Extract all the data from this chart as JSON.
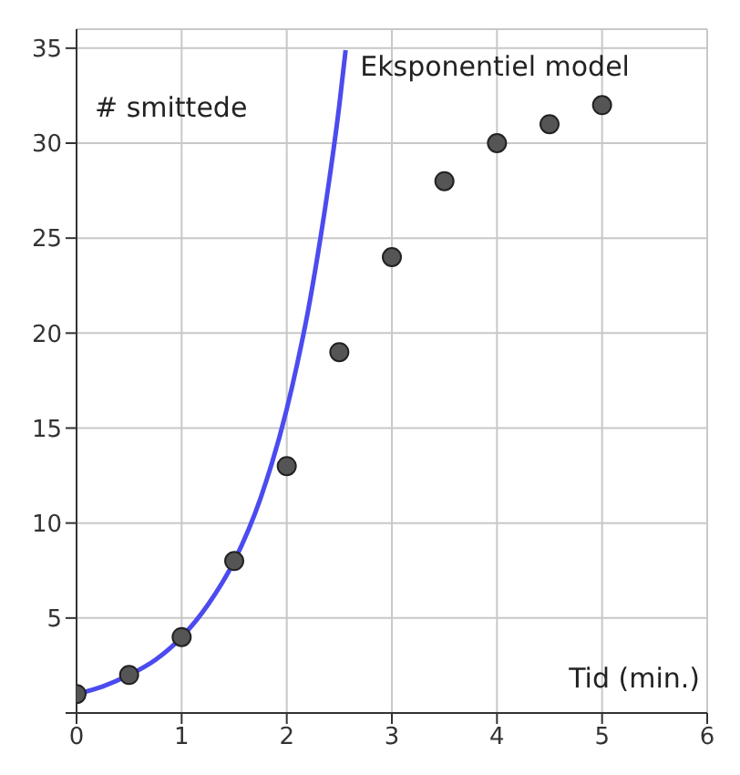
{
  "chart_data": {
    "type": "scatter",
    "xlabel": "Tid (min.)",
    "ylabel": "# smittede",
    "xlim": [
      0,
      6
    ],
    "ylim": [
      0,
      36
    ],
    "xticks": [
      0,
      1,
      2,
      3,
      4,
      5,
      6
    ],
    "yticks": [
      {
        "value": 0,
        "label": null
      },
      5,
      10,
      15,
      20,
      25,
      30,
      35
    ],
    "grid": true,
    "marker": "circle",
    "series": [
      {
        "color": "#555555",
        "x": [
          0,
          0.5,
          1,
          1.5,
          2,
          2.5,
          3,
          3.5,
          4,
          4.5,
          5
        ],
        "values": [
          1,
          2,
          4,
          8,
          13,
          19,
          24,
          28,
          30,
          31,
          32
        ]
      },
      {
        "type": "line",
        "name": "Eksponentiel model",
        "color": "#4b4bf0",
        "marker": "none",
        "x": [
          0,
          0.25,
          0.5,
          0.75,
          1,
          1.25,
          1.5,
          1.75,
          2,
          2.1,
          2.2,
          2.3,
          2.4,
          2.5,
          2.56
        ],
        "values": [
          1,
          1.4,
          2,
          2.8,
          4,
          5.7,
          8,
          11.3,
          16,
          18.4,
          21.1,
          24.3,
          27.9,
          32,
          34.9
        ]
      }
    ]
  }
}
